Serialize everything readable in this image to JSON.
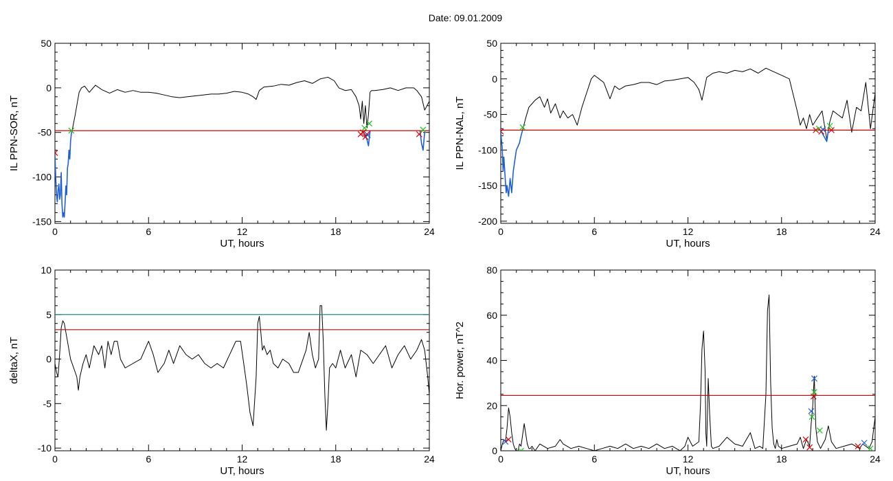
{
  "page": {
    "title": "Date:  09.01.2009"
  },
  "colors": {
    "frame": "#000000",
    "trace": "#000000",
    "highlight": "#1f5fd6",
    "threshold_red": "#d40000",
    "threshold_teal": "#1f8c8c",
    "marker_red": "#e00000",
    "marker_green": "#21c021",
    "marker_blue": "#1f5fd6"
  },
  "chart_data": [
    {
      "id": "il-sor",
      "type": "line",
      "xlabel": "UT, hours",
      "ylabel": "IL PPN-SOR, nT",
      "xlim": [
        0,
        24
      ],
      "ylim": [
        -152,
        50
      ],
      "xticks": [
        0,
        6,
        12,
        18,
        24
      ],
      "yticks": [
        -150,
        -100,
        -50,
        0,
        50
      ],
      "yminor": 10,
      "grid": false,
      "thresholds": [
        {
          "value": -48,
          "color": "red"
        }
      ],
      "series": [
        {
          "role": "trace",
          "x": [
            1.1,
            1.3,
            1.45,
            1.55,
            1.7,
            1.9,
            2.2,
            2.6,
            3,
            3.5,
            4,
            4.5,
            5,
            5.5,
            6,
            6.5,
            7,
            7.5,
            8,
            8.5,
            9,
            9.5,
            10,
            10.5,
            11,
            11.5,
            12,
            12.4,
            12.7,
            12.9,
            13.1,
            13.4,
            14,
            14.5,
            15,
            15.5,
            16,
            16.5,
            17,
            17.5,
            17.9,
            18.2,
            18.6,
            19,
            19.3,
            19.5,
            19.6,
            19.7,
            19.8,
            19.9,
            20,
            20.1,
            20.2,
            20.3,
            20.5,
            21,
            21.5,
            22,
            22.5,
            23,
            23.2,
            23.5,
            23.7,
            24
          ],
          "y": [
            -48,
            -30,
            -15,
            -5,
            0,
            2,
            -5,
            3,
            -2,
            -6,
            -2,
            -5,
            -3,
            -5,
            -5,
            -6,
            -8,
            -10,
            -11,
            -10,
            -9,
            -8,
            -7,
            -7,
            -6,
            -4,
            -5,
            -7,
            -10,
            -13,
            -3,
            1,
            2,
            4,
            3,
            6,
            8,
            5,
            10,
            12,
            8,
            0,
            -3,
            -2,
            -10,
            -20,
            -35,
            -15,
            -40,
            -20,
            -45,
            -30,
            -5,
            -3,
            -3,
            -2,
            0,
            -3,
            0,
            0,
            -3,
            -10,
            -25,
            -15
          ]
        },
        {
          "role": "highlight",
          "x": [
            0,
            0.05,
            0.1,
            0.15,
            0.2,
            0.25,
            0.3,
            0.35,
            0.4,
            0.45,
            0.5,
            0.55,
            0.6,
            0.65,
            0.7,
            0.75,
            0.8,
            0.85,
            0.9,
            0.95,
            1.0,
            1.05,
            1.1
          ],
          "y": [
            -75,
            -100,
            -120,
            -128,
            -115,
            -108,
            -125,
            -120,
            -95,
            -130,
            -145,
            -140,
            -145,
            -128,
            -110,
            -120,
            -90,
            -85,
            -70,
            -80,
            -60,
            -52,
            -48
          ]
        },
        {
          "role": "highlight",
          "x": [
            19.7,
            19.85,
            20.0,
            20.1,
            20.2
          ],
          "y": [
            -48,
            -52,
            -58,
            -65,
            -48
          ]
        },
        {
          "role": "highlight",
          "x": [
            23.4,
            23.5,
            23.6,
            23.7
          ],
          "y": [
            -48,
            -62,
            -70,
            -50
          ]
        }
      ],
      "markers": [
        {
          "x": 0.0,
          "y": -73,
          "color": "red"
        },
        {
          "x": 1.05,
          "y": -48,
          "color": "green"
        },
        {
          "x": 19.6,
          "y": -52,
          "color": "red"
        },
        {
          "x": 19.75,
          "y": -50,
          "color": "red"
        },
        {
          "x": 19.9,
          "y": -55,
          "color": "red"
        },
        {
          "x": 20.0,
          "y": -52,
          "color": "red"
        },
        {
          "x": 20.05,
          "y": -53,
          "color": "blue"
        },
        {
          "x": 20.15,
          "y": -40,
          "color": "green"
        },
        {
          "x": 19.85,
          "y": -45,
          "color": "green"
        },
        {
          "x": 23.35,
          "y": -52,
          "color": "red"
        },
        {
          "x": 23.6,
          "y": -47,
          "color": "green"
        }
      ]
    },
    {
      "id": "il-nal",
      "type": "line",
      "xlabel": "UT, hours",
      "ylabel": "IL PPN-NAL, nT",
      "xlim": [
        0,
        24
      ],
      "ylim": [
        -203,
        50
      ],
      "xticks": [
        0,
        6,
        12,
        18,
        24
      ],
      "yticks": [
        -200,
        -150,
        -100,
        -50,
        0,
        50
      ],
      "yminor": 10,
      "grid": false,
      "thresholds": [
        {
          "value": -72,
          "color": "red"
        }
      ],
      "series": [
        {
          "role": "trace",
          "x": [
            1.4,
            1.6,
            1.8,
            2.0,
            2.2,
            2.5,
            2.8,
            3.0,
            3.2,
            3.5,
            3.8,
            4.0,
            4.3,
            4.6,
            4.9,
            5.2,
            5.5,
            5.8,
            6.0,
            6.3,
            6.6,
            7.0,
            7.3,
            7.6,
            8.0,
            8.5,
            9.0,
            9.5,
            10.0,
            10.5,
            11.0,
            11.5,
            12.0,
            12.4,
            12.7,
            12.9,
            13.2,
            13.6,
            14.0,
            14.5,
            15.0,
            15.5,
            16.0,
            16.5,
            17.0,
            17.5,
            18.0,
            18.5,
            19.0,
            19.2,
            19.4,
            19.6,
            19.8,
            20.0,
            20.3,
            20.6,
            20.9,
            21.1,
            21.3,
            21.6,
            21.9,
            22.2,
            22.5,
            22.8,
            23.1,
            23.4,
            23.7,
            24.0
          ],
          "y": [
            -72,
            -55,
            -40,
            -35,
            -30,
            -25,
            -40,
            -28,
            -48,
            -35,
            -55,
            -45,
            -55,
            -50,
            -65,
            -40,
            -20,
            0,
            5,
            0,
            -5,
            -28,
            -10,
            -15,
            -10,
            -8,
            -5,
            -5,
            -8,
            -3,
            -2,
            0,
            2,
            -5,
            -15,
            -30,
            2,
            8,
            10,
            8,
            12,
            10,
            14,
            8,
            15,
            10,
            5,
            0,
            -45,
            -65,
            -55,
            -70,
            -50,
            -65,
            -55,
            -45,
            -85,
            -60,
            -45,
            -50,
            -55,
            -30,
            -75,
            -40,
            -45,
            -5,
            -70,
            -20
          ]
        },
        {
          "role": "highlight",
          "x": [
            0,
            0.1,
            0.15,
            0.2,
            0.3,
            0.35,
            0.4,
            0.5,
            0.6,
            0.7,
            0.8,
            0.9,
            1.0,
            1.1,
            1.2,
            1.3,
            1.4
          ],
          "y": [
            -75,
            -100,
            -130,
            -110,
            -145,
            -160,
            -150,
            -165,
            -140,
            -160,
            -130,
            -115,
            -100,
            -95,
            -90,
            -80,
            -72
          ]
        },
        {
          "role": "highlight",
          "x": [
            20.5,
            20.7,
            20.9,
            21.0
          ],
          "y": [
            -72,
            -80,
            -88,
            -72
          ]
        }
      ],
      "markers": [
        {
          "x": 0.0,
          "y": -74,
          "color": "red"
        },
        {
          "x": 1.4,
          "y": -68,
          "color": "green"
        },
        {
          "x": 20.2,
          "y": -72,
          "color": "red"
        },
        {
          "x": 20.4,
          "y": -70,
          "color": "green"
        },
        {
          "x": 20.55,
          "y": -74,
          "color": "red"
        },
        {
          "x": 20.65,
          "y": -71,
          "color": "blue"
        },
        {
          "x": 21.1,
          "y": -66,
          "color": "green"
        },
        {
          "x": 21.2,
          "y": -72,
          "color": "red"
        }
      ]
    },
    {
      "id": "deltax",
      "type": "line",
      "xlabel": "UT, hours",
      "ylabel": "deltaX, nT",
      "xlim": [
        0,
        24
      ],
      "ylim": [
        -10.3,
        10
      ],
      "xticks": [
        0,
        6,
        12,
        18,
        24
      ],
      "yticks": [
        -10,
        -5,
        0,
        5,
        10
      ],
      "yminor": 1,
      "grid": false,
      "thresholds": [
        {
          "value": 5,
          "color": "teal"
        },
        {
          "value": 3.3,
          "color": "red"
        }
      ],
      "series": [
        {
          "role": "trace",
          "x": [
            0,
            0.1,
            0.2,
            0.3,
            0.4,
            0.5,
            0.6,
            0.8,
            1.0,
            1.2,
            1.4,
            1.5,
            1.6,
            1.8,
            2.0,
            2.2,
            2.5,
            2.8,
            3.0,
            3.2,
            3.4,
            3.6,
            3.8,
            4.0,
            4.2,
            4.5,
            5.0,
            5.5,
            6.0,
            6.3,
            6.6,
            6.8,
            7.0,
            7.3,
            7.6,
            8.0,
            8.4,
            8.8,
            9.2,
            9.6,
            10.0,
            10.4,
            10.8,
            11.2,
            11.6,
            11.9,
            12.1,
            12.3,
            12.5,
            12.7,
            12.9,
            13.0,
            13.1,
            13.2,
            13.3,
            13.4,
            13.6,
            13.8,
            14.0,
            14.3,
            14.6,
            15.0,
            15.3,
            15.6,
            15.9,
            16.1,
            16.3,
            16.5,
            16.7,
            16.9,
            17.0,
            17.1,
            17.2,
            17.3,
            17.4,
            17.5,
            17.6,
            17.8,
            18.0,
            18.3,
            18.6,
            19.0,
            19.3,
            19.6,
            20.0,
            20.4,
            20.8,
            21.2,
            21.6,
            22.0,
            22.4,
            22.8,
            23.2,
            23.5,
            23.7,
            23.9,
            24.0
          ],
          "y": [
            -0.5,
            -1.5,
            -2,
            0.5,
            3.5,
            4.3,
            4,
            2,
            0,
            -1,
            -2,
            -3.5,
            -2,
            -0.5,
            0.5,
            -1,
            1.5,
            0.5,
            1.5,
            -1,
            2,
            0.5,
            2,
            2,
            0,
            -1,
            -0.5,
            0,
            2,
            0.5,
            -1.5,
            -1,
            -0.5,
            1,
            -0.5,
            1.5,
            0.5,
            0,
            0.5,
            -0.5,
            -1,
            -0.5,
            -1,
            0.5,
            2,
            2,
            -0.5,
            -3,
            -6,
            -7.5,
            -2,
            4,
            4.8,
            3,
            1,
            1.5,
            0.5,
            1,
            -0.5,
            -1,
            0,
            -0.5,
            -1.5,
            -1.5,
            0,
            1,
            3,
            0.5,
            -1,
            0,
            6,
            6,
            2,
            -4,
            -8,
            -5,
            -1,
            -0.5,
            -1,
            1,
            -1,
            0.5,
            -2,
            1,
            0.5,
            -0.5,
            0.5,
            1.5,
            -1,
            0.5,
            1.5,
            0,
            1,
            2.2,
            1,
            -2,
            -4
          ]
        }
      ],
      "markers": []
    },
    {
      "id": "hor-power",
      "type": "line",
      "xlabel": "UT, hours",
      "ylabel": "Hor. power, nT^2",
      "xlim": [
        0,
        24
      ],
      "ylim": [
        0,
        80
      ],
      "xticks": [
        0,
        6,
        12,
        18,
        24
      ],
      "yticks": [
        0,
        20,
        40,
        60,
        80
      ],
      "yminor": 5,
      "grid": false,
      "thresholds": [
        {
          "value": 24.5,
          "color": "red"
        }
      ],
      "series": [
        {
          "role": "trace",
          "x": [
            0,
            0.1,
            0.2,
            0.3,
            0.4,
            0.5,
            0.6,
            0.7,
            0.8,
            0.9,
            1.0,
            1.1,
            1.2,
            1.3,
            1.5,
            1.7,
            1.8,
            1.9,
            2.0,
            2.2,
            2.5,
            3.0,
            3.5,
            3.8,
            4.0,
            4.5,
            5.0,
            5.5,
            6.0,
            6.5,
            7.0,
            7.5,
            8.0,
            8.5,
            9.0,
            9.5,
            10.0,
            10.5,
            11.0,
            11.5,
            11.8,
            12.0,
            12.3,
            12.5,
            12.7,
            12.8,
            12.9,
            13.0,
            13.1,
            13.15,
            13.2,
            13.3,
            13.4,
            13.5,
            13.6,
            14.0,
            14.5,
            15.0,
            15.5,
            16.0,
            16.3,
            16.6,
            16.8,
            17.0,
            17.1,
            17.2,
            17.3,
            17.4,
            17.5,
            17.6,
            17.7,
            17.8,
            18.0,
            18.5,
            19.0,
            19.2,
            19.4,
            19.6,
            19.8,
            19.9,
            20.0,
            20.1,
            20.2,
            20.3,
            20.5,
            20.8,
            21.0,
            21.2,
            21.5,
            22.0,
            22.5,
            23.0,
            23.2,
            23.4,
            23.6,
            23.8,
            24.0
          ],
          "y": [
            0,
            3,
            5,
            4,
            10,
            19,
            15,
            8,
            3,
            1,
            0,
            0,
            3,
            2,
            12,
            3,
            1,
            1,
            2,
            0,
            3,
            1,
            2,
            5,
            3,
            1,
            2,
            1,
            0,
            1,
            2,
            1,
            3,
            1,
            2,
            1,
            3,
            1,
            2,
            0,
            2,
            6,
            2,
            3,
            4,
            20,
            45,
            53,
            35,
            8,
            2,
            32,
            15,
            2,
            1,
            2,
            6,
            3,
            2,
            8,
            1,
            2,
            1,
            25,
            62,
            69,
            30,
            10,
            3,
            1,
            5,
            2,
            1,
            2,
            3,
            6,
            1,
            5,
            2,
            12,
            20,
            33,
            10,
            4,
            1,
            5,
            11,
            4,
            1,
            2,
            3,
            1,
            3,
            2,
            1,
            4,
            15
          ]
        }
      ],
      "markers": [
        {
          "x": 0.3,
          "y": 4,
          "color": "blue"
        },
        {
          "x": 0.5,
          "y": 5,
          "color": "red"
        },
        {
          "x": 1.3,
          "y": 0,
          "color": "green"
        },
        {
          "x": 19.55,
          "y": 5,
          "color": "red"
        },
        {
          "x": 19.8,
          "y": 1.5,
          "color": "red"
        },
        {
          "x": 19.9,
          "y": 17.5,
          "color": "blue"
        },
        {
          "x": 19.95,
          "y": 15,
          "color": "green"
        },
        {
          "x": 20.05,
          "y": 24,
          "color": "red"
        },
        {
          "x": 20.1,
          "y": 26,
          "color": "green"
        },
        {
          "x": 20.1,
          "y": 32,
          "color": "blue"
        },
        {
          "x": 20.45,
          "y": 9,
          "color": "green"
        },
        {
          "x": 22.9,
          "y": 2,
          "color": "red"
        },
        {
          "x": 23.3,
          "y": 3.5,
          "color": "blue"
        },
        {
          "x": 23.7,
          "y": 1,
          "color": "green"
        }
      ]
    }
  ]
}
